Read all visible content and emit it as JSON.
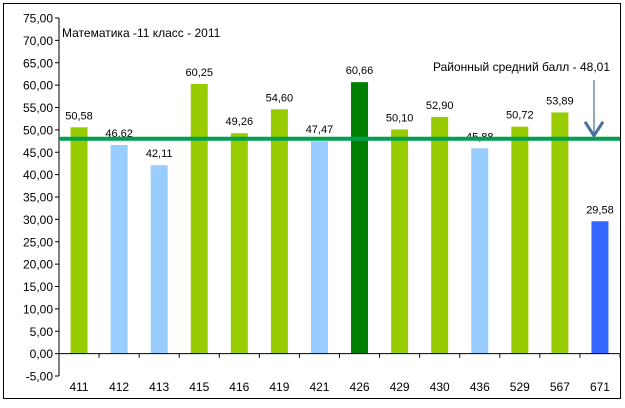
{
  "chart_data": {
    "type": "bar",
    "title": "Математика -11 класс - 2011",
    "categories": [
      "411",
      "412",
      "413",
      "415",
      "416",
      "419",
      "421",
      "426",
      "429",
      "430",
      "436",
      "529",
      "567",
      "671"
    ],
    "values": [
      50.58,
      46.62,
      42.11,
      60.25,
      49.26,
      54.6,
      47.47,
      60.66,
      50.1,
      52.9,
      45.88,
      50.72,
      53.89,
      29.58
    ],
    "value_labels": [
      "50,58",
      "46,62",
      "42,11",
      "60,25",
      "49,26",
      "54,60",
      "47,47",
      "60,66",
      "50,10",
      "52,90",
      "45,88",
      "50,72",
      "53,89",
      "29,58"
    ],
    "bar_colors": [
      "#99cc00",
      "#99ccff",
      "#99ccff",
      "#99cc00",
      "#99cc00",
      "#99cc00",
      "#99ccff",
      "#008000",
      "#99cc00",
      "#99cc00",
      "#99ccff",
      "#99cc00",
      "#99cc00",
      "#3366ff"
    ],
    "ylim": [
      -5,
      75
    ],
    "y_ticks": [
      75,
      70,
      65,
      60,
      55,
      50,
      45,
      40,
      35,
      30,
      25,
      20,
      15,
      10,
      5,
      0,
      -5
    ],
    "y_tick_labels": [
      "75,00",
      "70,00",
      "65,00",
      "60,00",
      "55,00",
      "50,00",
      "45,00",
      "40,00",
      "35,00",
      "30,00",
      "25,00",
      "20,00",
      "15,00",
      "10,00",
      "5,00",
      "0,00",
      "-5,00"
    ],
    "reference_line": {
      "value": 48.01,
      "label": "Районный средний балл - 48,01",
      "color": "#00a050"
    },
    "arrow_color": "#4a6f9a",
    "grid": false,
    "legend": "none",
    "xlabel": "",
    "ylabel": ""
  }
}
